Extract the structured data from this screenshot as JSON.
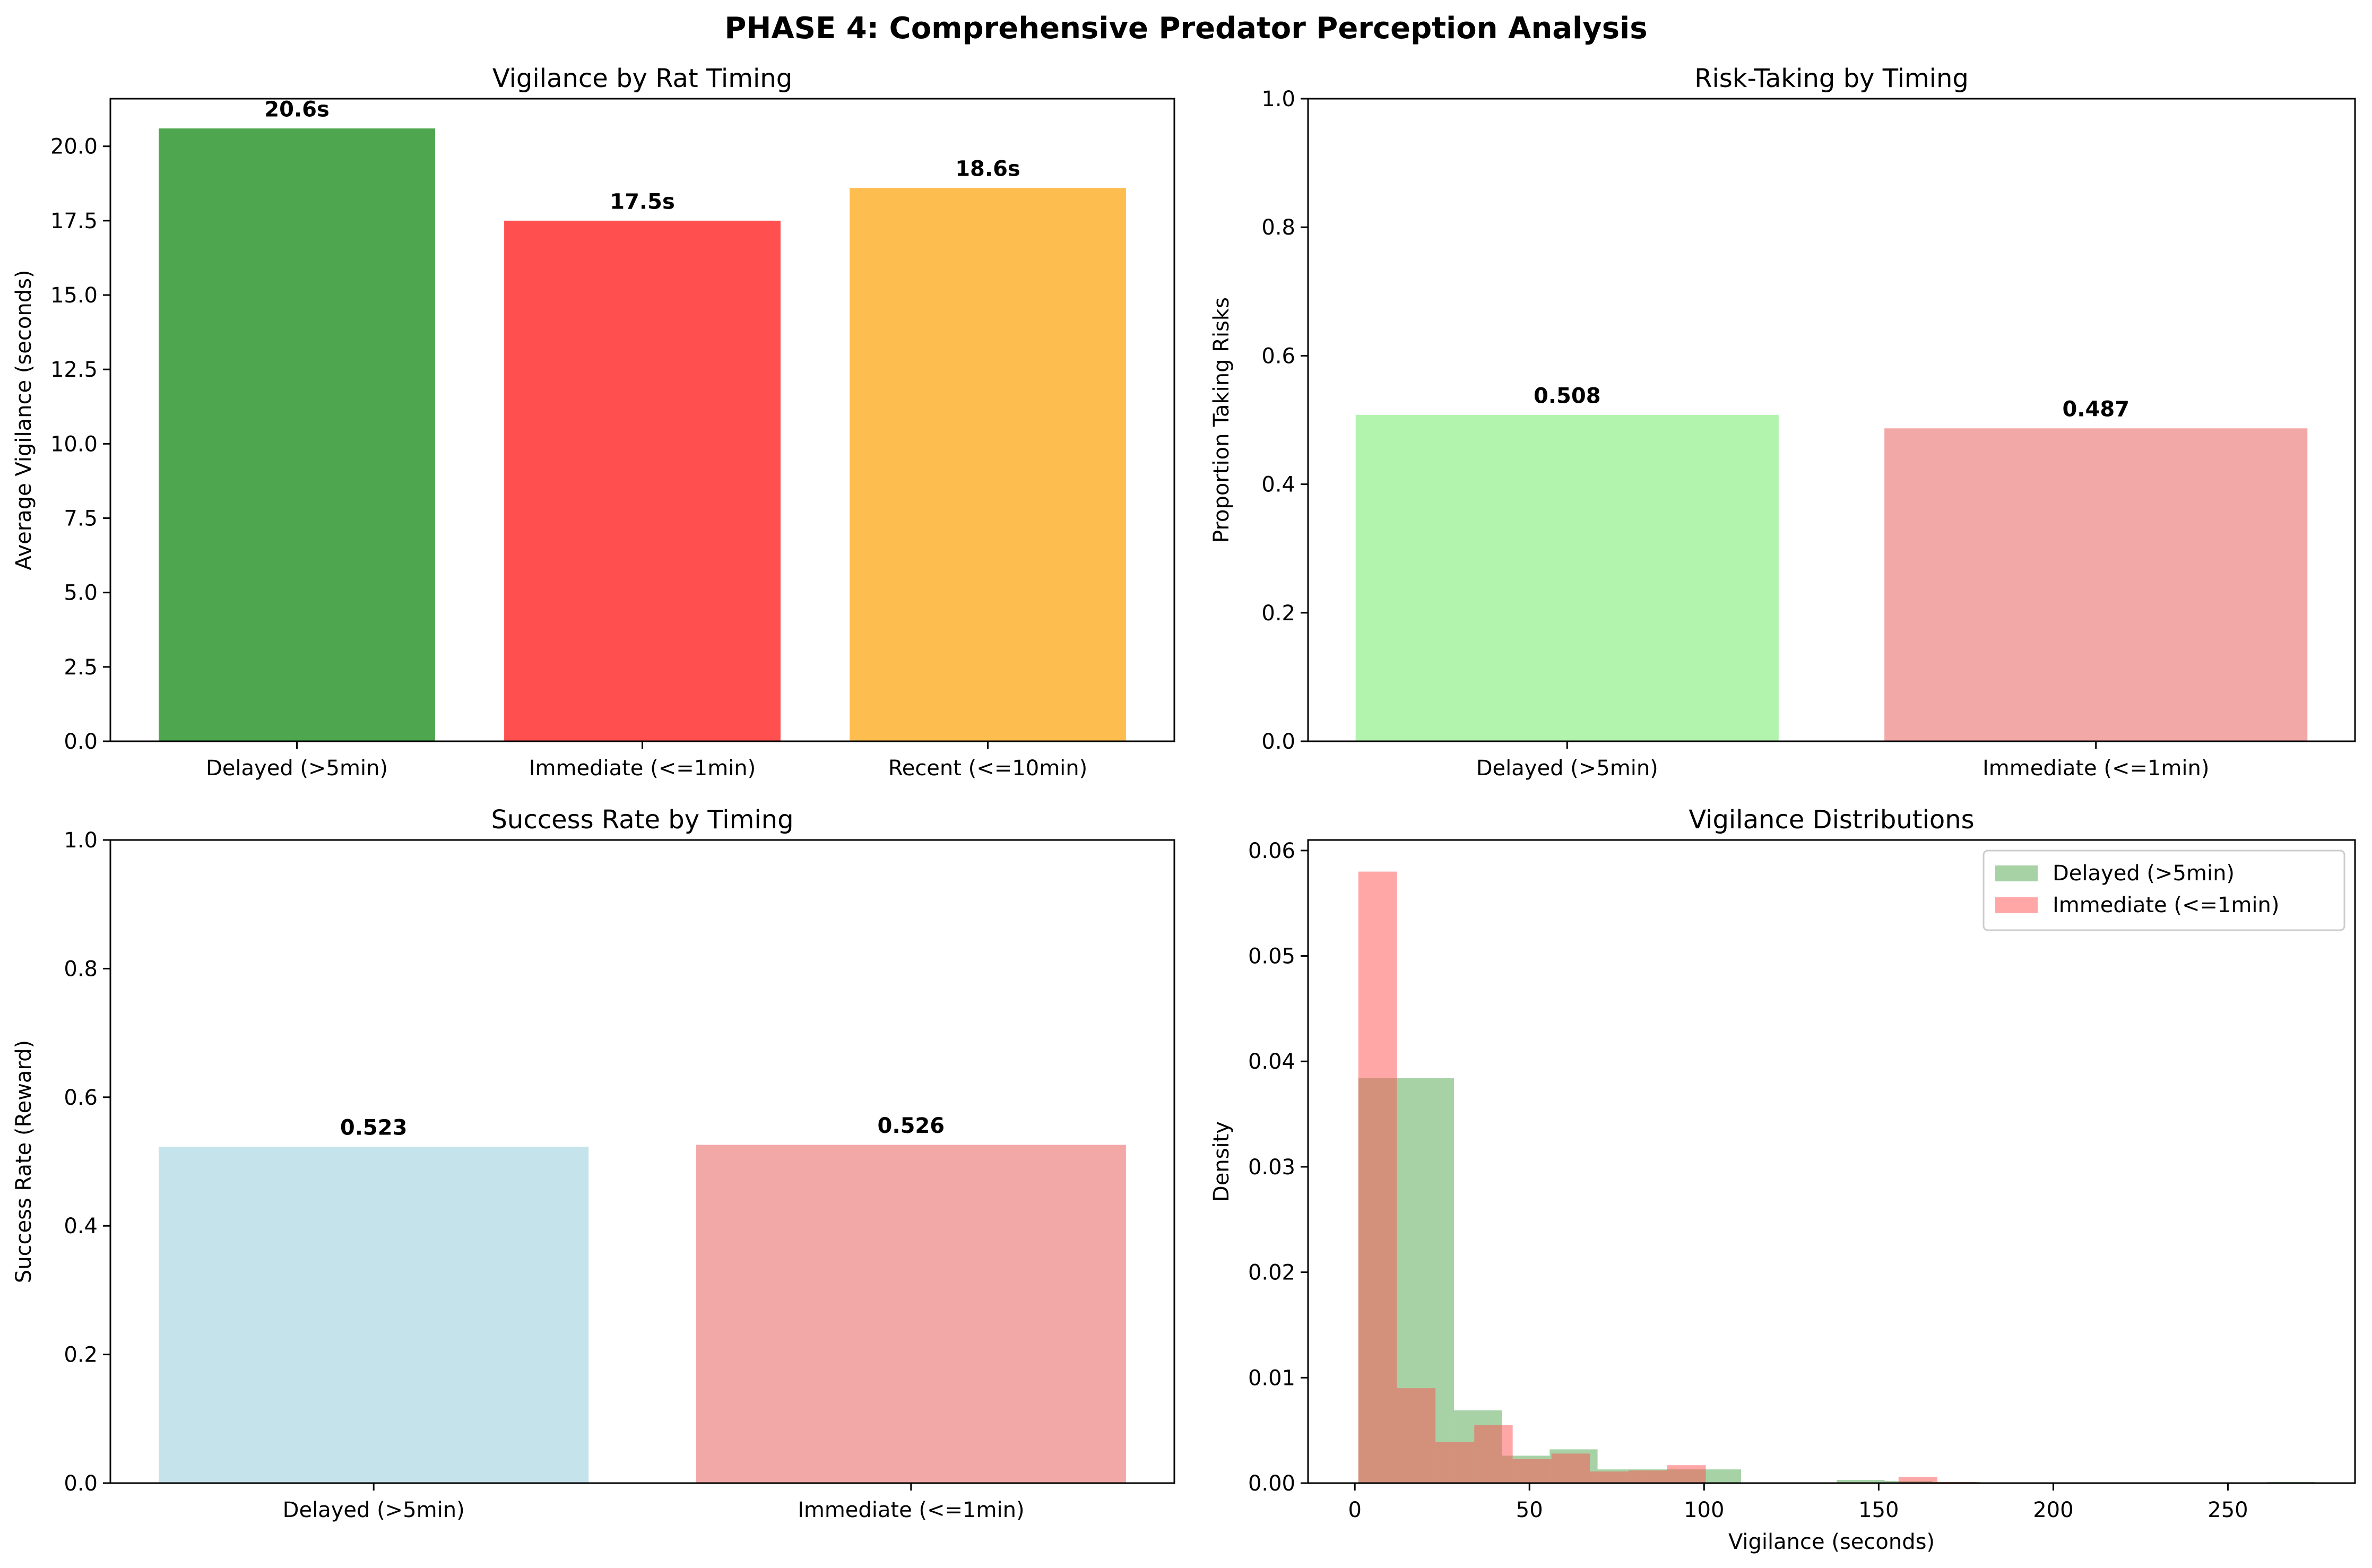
{
  "figure_title": "PHASE 4: Comprehensive Predator Perception Analysis",
  "chart_data": [
    {
      "type": "bar",
      "title": "Vigilance by Rat Timing",
      "xlabel": "",
      "ylabel": "Average Vigilance (seconds)",
      "categories": [
        "Delayed (>5min)",
        "Immediate (<=1min)",
        "Recent (<=10min)"
      ],
      "values": [
        20.6,
        17.5,
        18.6
      ],
      "data_labels": [
        "20.6s",
        "17.5s",
        "18.6s"
      ],
      "colors": [
        "#4ea64e",
        "#ff4f4f",
        "#fdbe4f"
      ],
      "ylim": [
        0,
        21.6
      ],
      "yticks": [
        "0.0",
        "2.5",
        "5.0",
        "7.5",
        "10.0",
        "12.5",
        "15.0",
        "17.5",
        "20.0"
      ],
      "grid": false
    },
    {
      "type": "bar",
      "title": "Risk-Taking by Timing",
      "xlabel": "",
      "ylabel": "Proportion Taking Risks",
      "categories": [
        "Delayed (>5min)",
        "Immediate (<=1min)"
      ],
      "values": [
        0.508,
        0.487
      ],
      "data_labels": [
        "0.508",
        "0.487"
      ],
      "colors": [
        "#b2f4ae",
        "#f3a8a8"
      ],
      "ylim": [
        0,
        1
      ],
      "yticks": [
        "0.0",
        "0.2",
        "0.4",
        "0.6",
        "0.8",
        "1.0"
      ],
      "grid": false
    },
    {
      "type": "bar",
      "title": "Success Rate by Timing",
      "xlabel": "",
      "ylabel": "Success Rate (Reward)",
      "categories": [
        "Delayed (>5min)",
        "Immediate (<=1min)"
      ],
      "values": [
        0.523,
        0.526
      ],
      "data_labels": [
        "0.523",
        "0.526"
      ],
      "colors": [
        "#c5e3eb",
        "#f3a8a8"
      ],
      "ylim": [
        0,
        1
      ],
      "yticks": [
        "0.0",
        "0.2",
        "0.4",
        "0.6",
        "0.8",
        "1.0"
      ],
      "grid": false
    },
    {
      "type": "histogram",
      "title": "Vigilance Distributions",
      "xlabel": "Vigilance (seconds)",
      "ylabel": "Density",
      "xlim": [
        -13.4,
        286.4
      ],
      "ylim": [
        0,
        0.061
      ],
      "xticks": [
        0,
        50,
        100,
        150,
        200,
        250
      ],
      "yticks": [
        "0.00",
        "0.01",
        "0.02",
        "0.03",
        "0.04",
        "0.05",
        "0.06"
      ],
      "legend_position": "top-right",
      "grid": false,
      "series": [
        {
          "name": "Delayed (>5min)",
          "color": "#4ea64e",
          "bin_edges": [
            1,
            14.7,
            28.4,
            42.1,
            55.8,
            69.5,
            83.2,
            96.9,
            110.6,
            124.3,
            138,
            151.7,
            165.4,
            179.1,
            192.8,
            206.5,
            220.2,
            233.9,
            247.6,
            261.3,
            275
          ],
          "densities": [
            0.0384,
            0.0384,
            0.0069,
            0.0026,
            0.0032,
            0.0013,
            0.0013,
            0.0013,
            0.0,
            0.0,
            0.0003,
            0.0002,
            0.0001,
            0.0,
            0.0,
            0.0,
            0.0,
            0.0,
            0.0,
            0.0001
          ]
        },
        {
          "name": "Immediate (<=1min)",
          "color": "#ff4f4f",
          "bin_edges": [
            1,
            12.1,
            23.1,
            34.2,
            45.2,
            56.3,
            67.3,
            78.4,
            89.4,
            100.5,
            111.5,
            122.6,
            133.6,
            144.7,
            155.7,
            166.8,
            177.8
          ],
          "densities": [
            0.058,
            0.009,
            0.0039,
            0.0055,
            0.0023,
            0.0028,
            0.0011,
            0.0012,
            0.0017,
            0.0,
            0.0,
            0.0,
            0.0,
            0.0,
            0.0006,
            0.0001
          ]
        }
      ]
    }
  ]
}
